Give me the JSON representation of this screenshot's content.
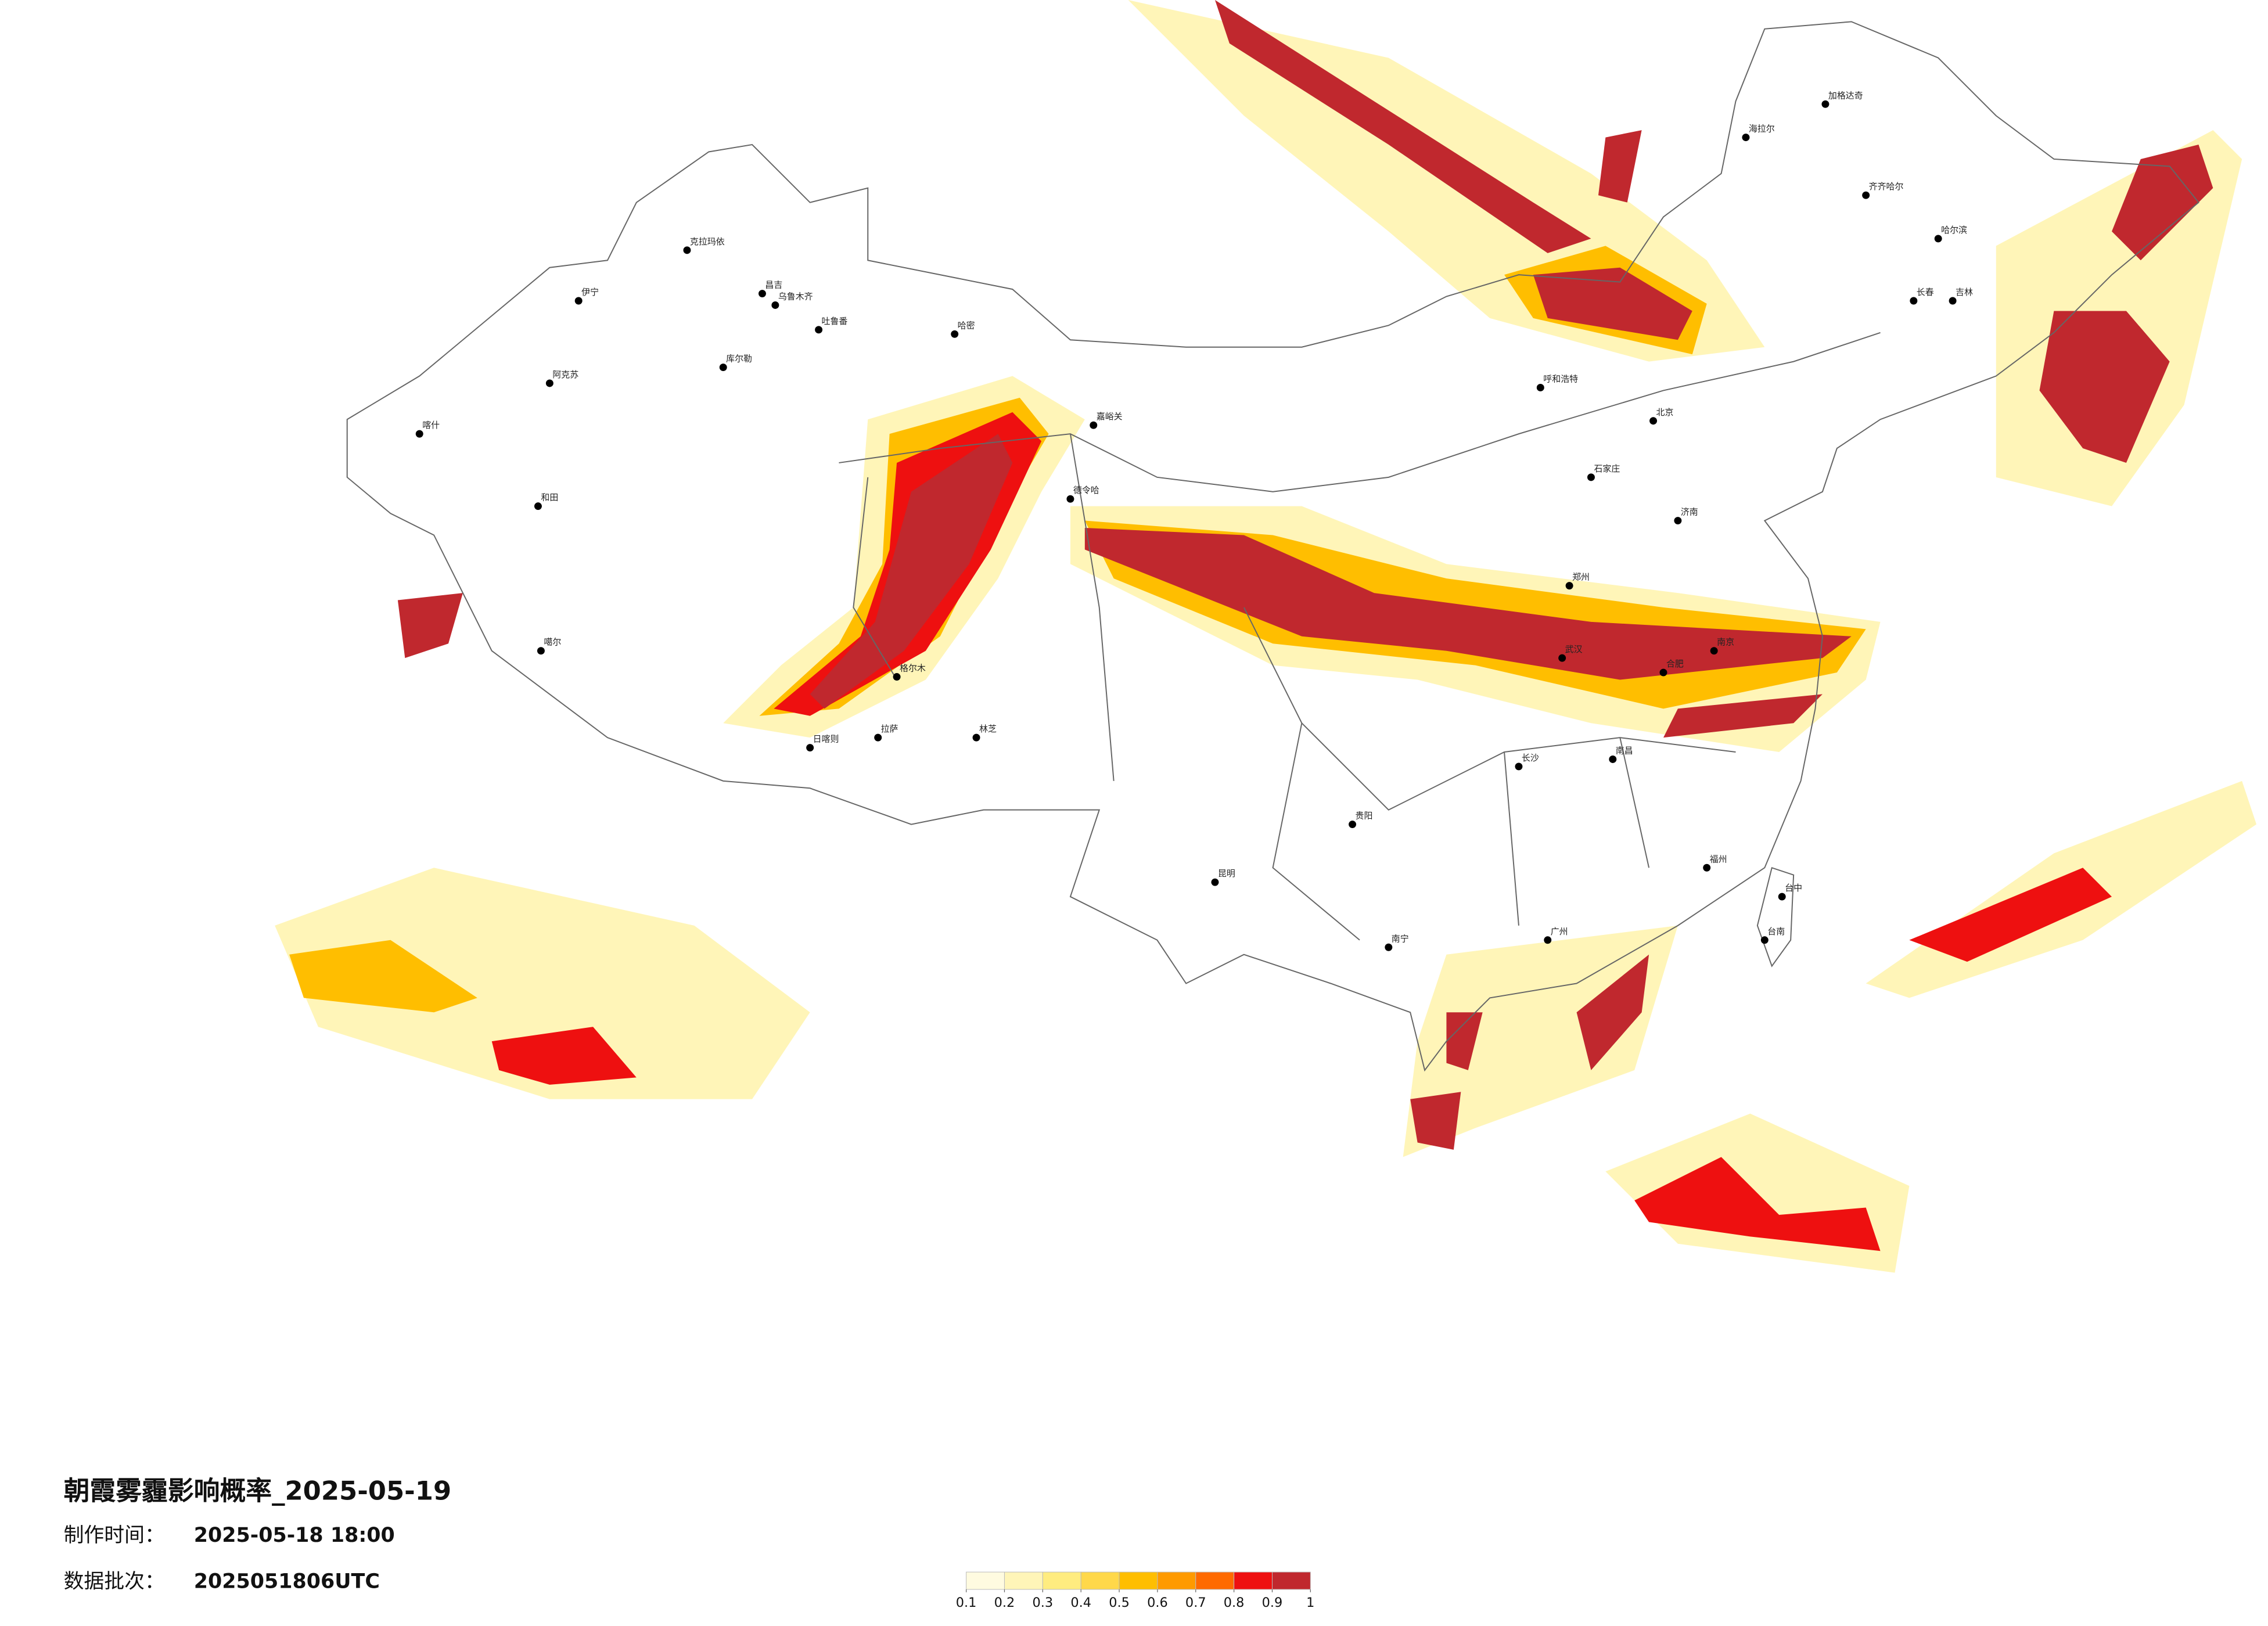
{
  "title": "朝霞雾霾影响概率_2025-05-19",
  "production_time": {
    "label": "制作时间：",
    "value": "2025-05-18 18:00"
  },
  "data_batch": {
    "label": "数据批次：",
    "value": "2025051806UTC"
  },
  "legend": {
    "colors": [
      "#fffbe0",
      "#fff5b8",
      "#ffec80",
      "#ffd84a",
      "#ffbe00",
      "#ff9a00",
      "#ff6a00",
      "#ee1010",
      "#c0282e"
    ],
    "ticks": [
      0.1,
      0.2,
      0.3,
      0.4,
      0.5,
      0.6,
      0.7,
      0.8,
      0.9,
      1
    ]
  },
  "cities": [
    "克拉玛依",
    "伊宁",
    "昌吉",
    "乌鲁木齐",
    "吐鲁番",
    "哈密",
    "库尔勒",
    "阿克苏",
    "喀什",
    "和田",
    "噶尔",
    "日喀则",
    "拉萨",
    "林芝",
    "格尔木",
    "德令哈",
    "嘉峪关",
    "海拉尔",
    "加格达奇",
    "齐齐哈尔",
    "哈尔滨",
    "长春",
    "吉林",
    "呼和浩特",
    "石家庄",
    "北京",
    "济南",
    "郑州",
    "南京",
    "合肥",
    "武汉",
    "长沙",
    "南昌",
    "福州",
    "贵阳",
    "昆明",
    "南宁",
    "广州",
    "台中",
    "台南"
  ]
}
